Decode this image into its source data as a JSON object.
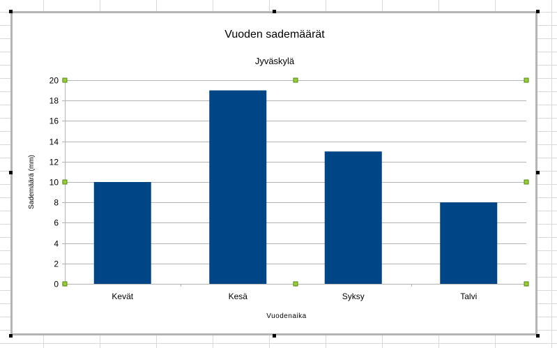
{
  "colors": {
    "bar": "#004586",
    "gridline": "#b3b3b3",
    "axis": "#b3b3b3",
    "frame": "#b4b4b4",
    "sheet_grid": "#d9d9d9",
    "handle_fill": "#99cc33",
    "handle_stroke": "#4f8a10",
    "frame_handle": "#000000"
  },
  "chart_data": {
    "type": "bar",
    "title": "Vuoden sademäärät",
    "subtitle": "Jyväskylä",
    "xlabel": "Vuodenaika",
    "ylabel": "Sademäärä (mm)",
    "categories": [
      "Kevät",
      "Kesä",
      "Syksy",
      "Talvi"
    ],
    "values": [
      10,
      19,
      13,
      8
    ],
    "ylim": [
      0,
      20
    ],
    "yticks": [
      0,
      2,
      4,
      6,
      8,
      10,
      12,
      14,
      16,
      18,
      20
    ],
    "grid": true,
    "legend": "none"
  }
}
